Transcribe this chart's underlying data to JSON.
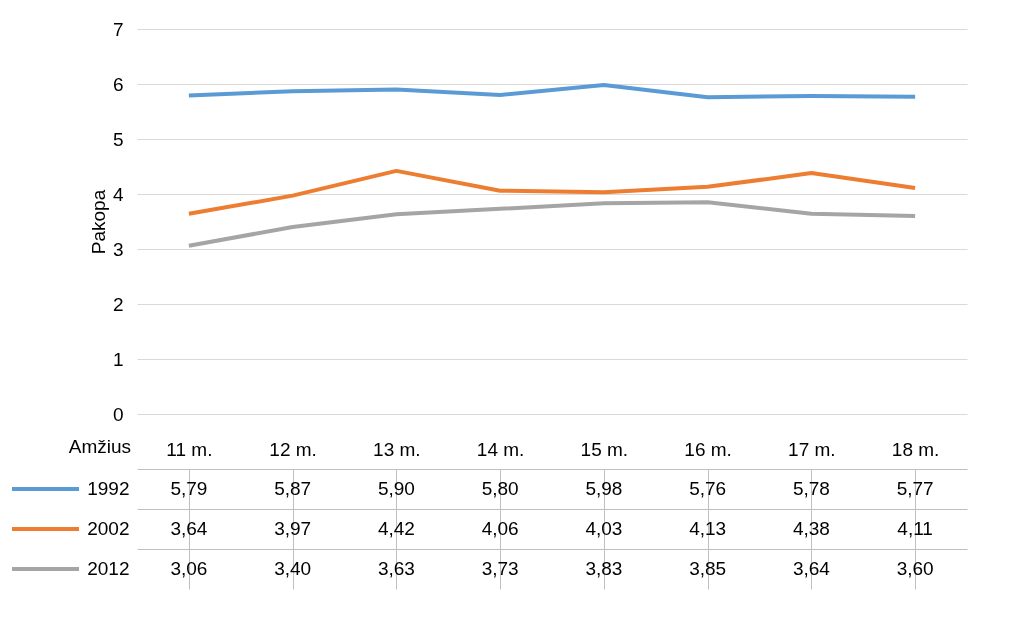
{
  "chart_data": {
    "type": "line",
    "ylabel": "Pakopa",
    "xlabel": "Amžius",
    "categories": [
      "11 m.",
      "12 m.",
      "13 m.",
      "14 m.",
      "15 m.",
      "16 m.",
      "17 m.",
      "18 m."
    ],
    "series": [
      {
        "name": "1992",
        "color": "#5b9bd5",
        "values": [
          5.79,
          5.87,
          5.9,
          5.8,
          5.98,
          5.76,
          5.78,
          5.77
        ],
        "value_labels": [
          "5,79",
          "5,87",
          "5,90",
          "5,80",
          "5,98",
          "5,76",
          "5,78",
          "5,77"
        ]
      },
      {
        "name": "2002",
        "color": "#ed7d31",
        "values": [
          3.64,
          3.97,
          4.42,
          4.06,
          4.03,
          4.13,
          4.38,
          4.11
        ],
        "value_labels": [
          "3,64",
          "3,97",
          "4,42",
          "4,06",
          "4,03",
          "4,13",
          "4,38",
          "4,11"
        ]
      },
      {
        "name": "2012",
        "color": "#a5a5a5",
        "values": [
          3.06,
          3.4,
          3.63,
          3.73,
          3.83,
          3.85,
          3.64,
          3.6
        ],
        "value_labels": [
          "3,06",
          "3,40",
          "3,63",
          "3,73",
          "3,83",
          "3,85",
          "3,64",
          "3,60"
        ]
      }
    ],
    "ylim": [
      0,
      7
    ],
    "yticks": [
      0,
      1,
      2,
      3,
      4,
      5,
      6,
      7
    ],
    "grid": "y",
    "legend": "bottom",
    "line_style": "solid",
    "marker": "none"
  }
}
